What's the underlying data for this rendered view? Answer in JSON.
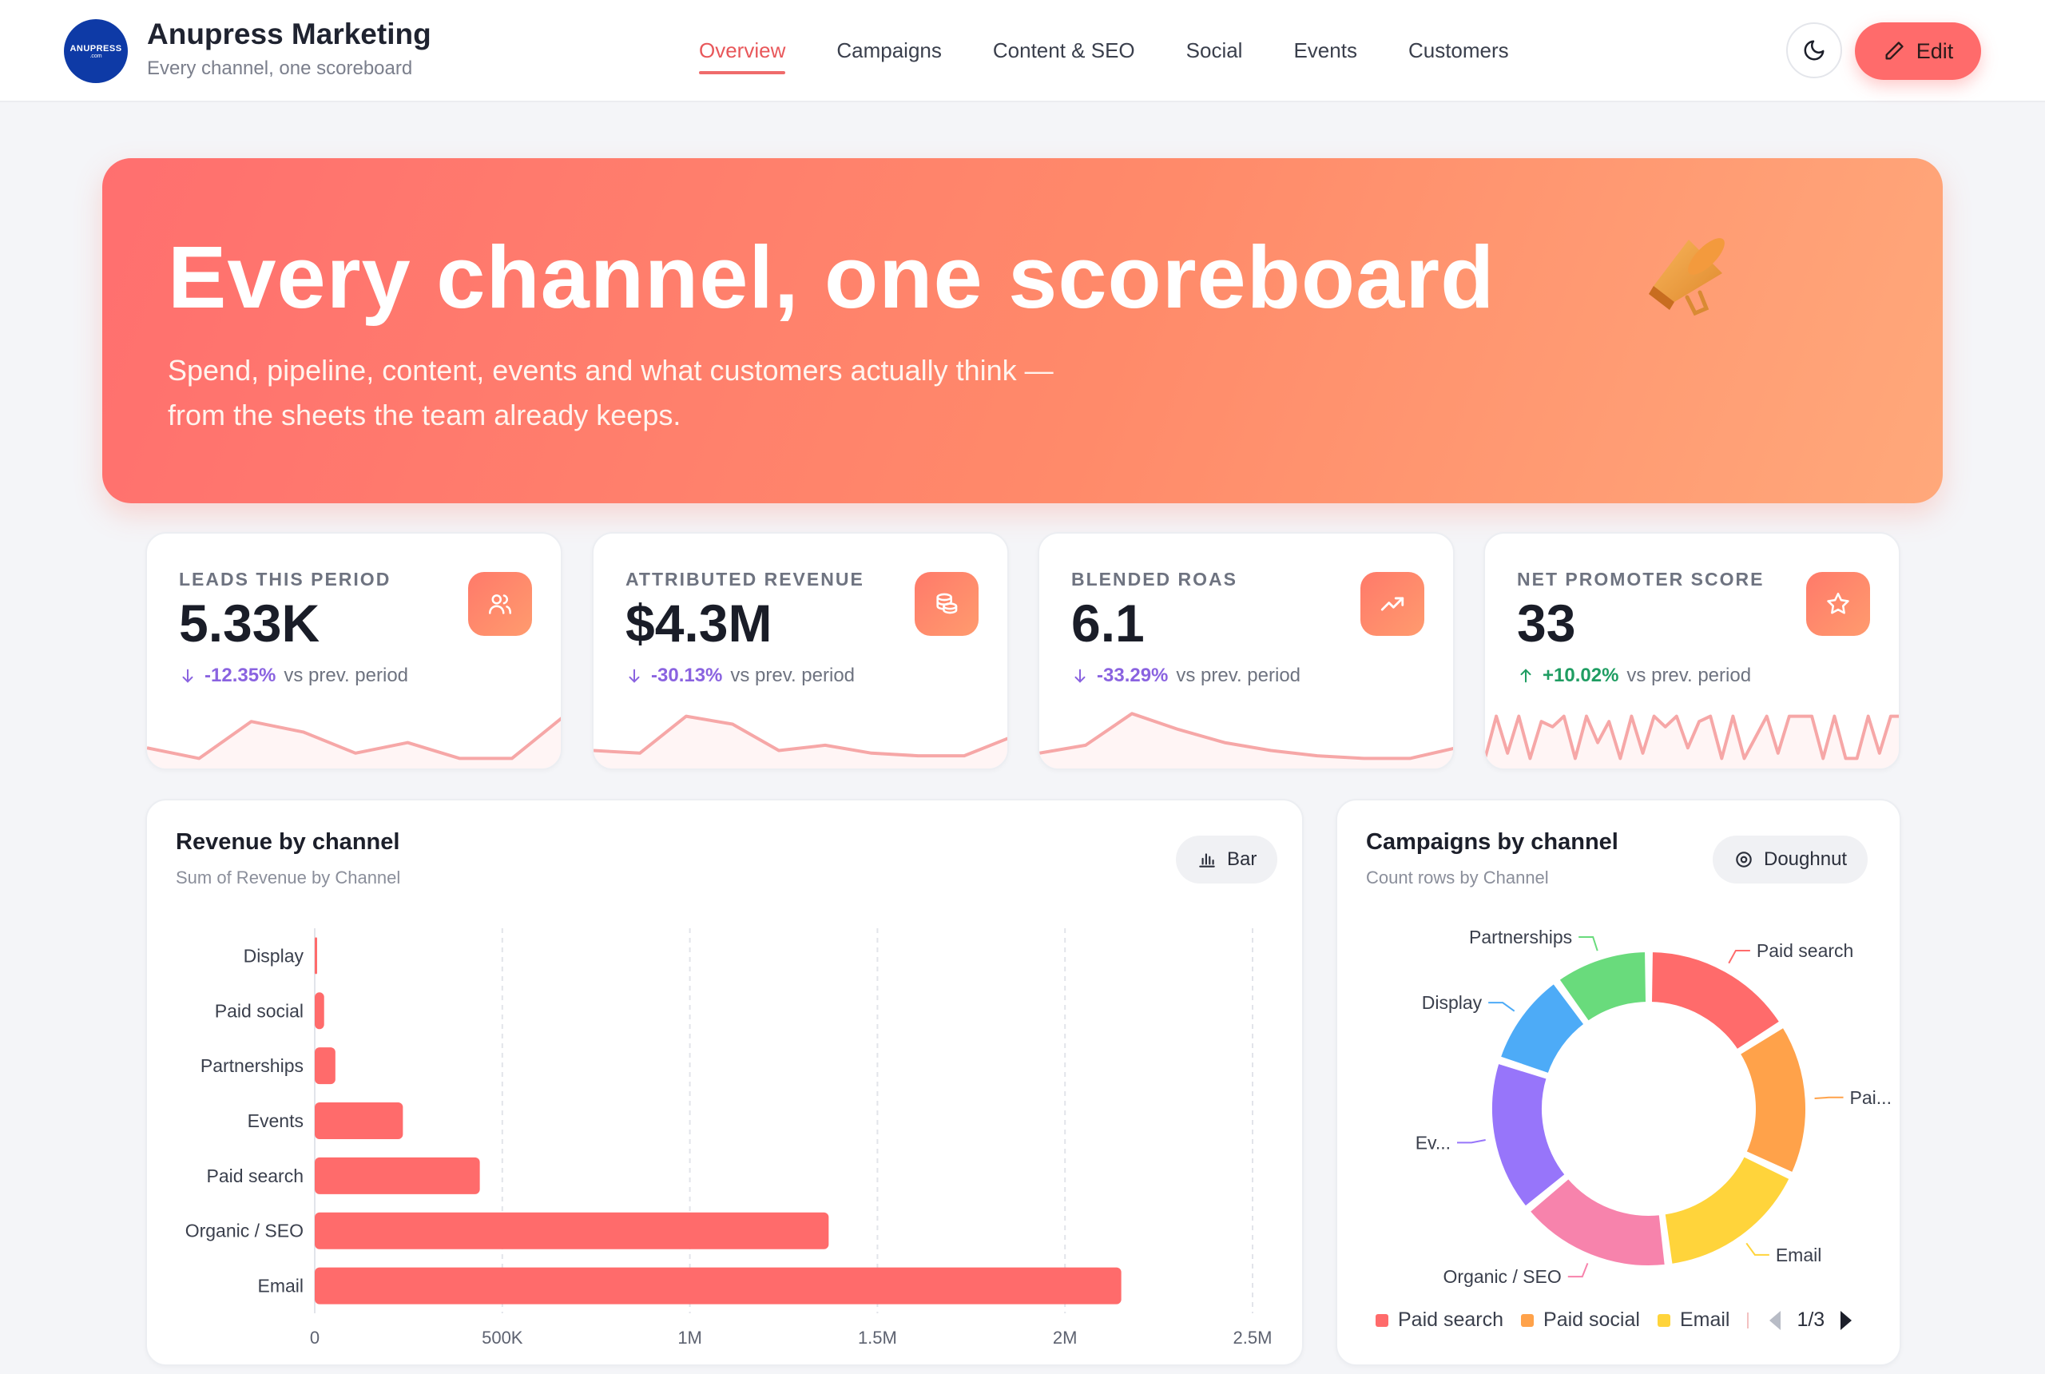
{
  "header": {
    "logo_text": "ANUPRESS",
    "logo_sub": ".com",
    "brand_title": "Anupress Marketing",
    "brand_subtitle": "Every channel, one scoreboard",
    "nav": [
      "Overview",
      "Campaigns",
      "Content & SEO",
      "Social",
      "Events",
      "Customers"
    ],
    "active_nav": "Overview",
    "edit_label": "Edit"
  },
  "hero": {
    "title": "Every channel, one scoreboard",
    "icon": "megaphone-icon",
    "description_line1": "Spend, pipeline, content, events and what customers actually think —",
    "description_line2": "from the sheets the team already keeps."
  },
  "kpis": [
    {
      "label": "LEADS THIS PERIOD",
      "value": "5.33K",
      "delta": "-12.35%",
      "direction": "down",
      "suffix": "vs prev. period",
      "icon": "users-icon",
      "spark": [
        0.7,
        0.9,
        0.2,
        0.4,
        0.8,
        0.6,
        0.9,
        0.9,
        0.1
      ]
    },
    {
      "label": "ATTRIBUTED REVENUE",
      "value": "$4.3M",
      "delta": "-30.13%",
      "direction": "down",
      "suffix": "vs prev. period",
      "icon": "coins-icon",
      "spark": [
        0.75,
        0.8,
        0.1,
        0.25,
        0.75,
        0.65,
        0.8,
        0.85,
        0.85,
        0.5
      ]
    },
    {
      "label": "BLENDED ROAS",
      "value": "6.1",
      "delta": "-33.29%",
      "direction": "down",
      "suffix": "vs prev. period",
      "icon": "trending-up-icon",
      "spark": [
        0.8,
        0.65,
        0.05,
        0.35,
        0.6,
        0.75,
        0.85,
        0.9,
        0.9,
        0.7
      ]
    },
    {
      "label": "NET PROMOTER SCORE",
      "value": "33",
      "delta": "+10.02%",
      "direction": "up",
      "suffix": "vs prev. period",
      "icon": "star-icon",
      "spark": [
        0.9,
        0.1,
        0.8,
        0.1,
        0.9,
        0.2,
        0.3,
        0.1,
        0.9,
        0.1,
        0.6,
        0.2,
        0.9,
        0.1,
        0.8,
        0.1,
        0.3,
        0.1,
        0.7,
        0.2,
        0.1,
        0.9,
        0.1,
        0.9,
        0.5,
        0.1,
        0.8,
        0.1,
        0.1,
        0.1,
        0.9,
        0.1,
        0.9,
        0.9,
        0.1,
        0.8,
        0.1,
        0.1
      ]
    }
  ],
  "revenue_card": {
    "title": "Revenue by channel",
    "subtitle": "Sum of Revenue by Channel",
    "toggle_label": "Bar"
  },
  "campaigns_card": {
    "title": "Campaigns by channel",
    "subtitle": "Count rows by Channel",
    "toggle_label": "Doughnut",
    "legend": [
      {
        "label": "Paid search",
        "color": "#ff6b6b"
      },
      {
        "label": "Paid social",
        "color": "#ffa24a"
      },
      {
        "label": "Email",
        "color": "#ffd43b"
      }
    ],
    "pager": "1/3"
  },
  "chart_data": [
    {
      "type": "bar",
      "orientation": "horizontal",
      "categories": [
        "Display",
        "Paid social",
        "Partnerships",
        "Events",
        "Paid search",
        "Organic / SEO",
        "Email"
      ],
      "values": [
        5000,
        25000,
        55000,
        235000,
        440000,
        1370000,
        2150000
      ],
      "xlim": [
        0,
        2500000
      ],
      "xticks": [
        "0",
        "500K",
        "1M",
        "1.5M",
        "2M",
        "2.5M"
      ],
      "grid": true,
      "color": "#ff6b6b"
    },
    {
      "type": "pie",
      "variant": "doughnut",
      "labels": [
        "Paid search",
        "Pai...",
        "Email",
        "Organic / SEO",
        "Ev...",
        "Display",
        "Partnerships"
      ],
      "values": [
        16,
        16,
        16,
        16,
        16,
        10,
        10
      ],
      "colors": [
        "#ff6b6b",
        "#ffa24a",
        "#ffd43b",
        "#f783ac",
        "#9775fa",
        "#4dabf7",
        "#69db7c"
      ]
    }
  ]
}
